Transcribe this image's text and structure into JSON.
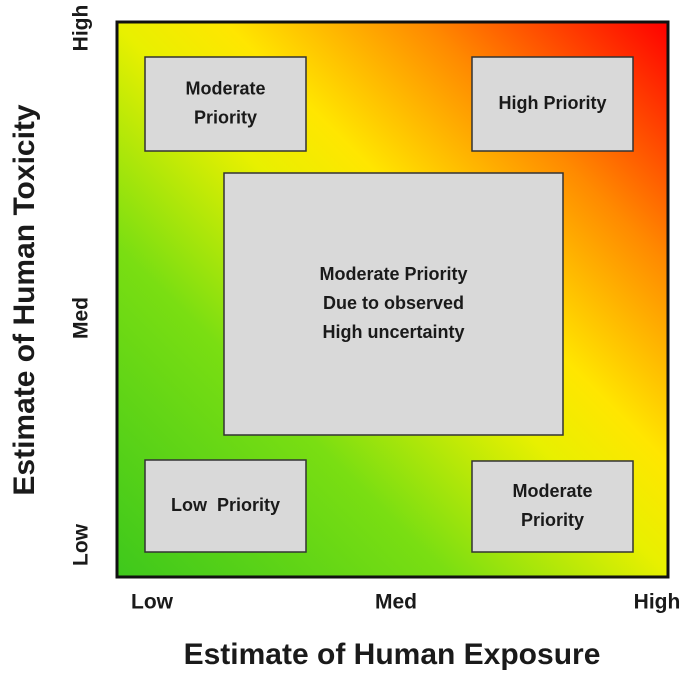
{
  "x_axis": {
    "title": "Estimate of Human Exposure",
    "ticks": [
      "Low",
      "Med",
      "High"
    ]
  },
  "y_axis": {
    "title": "Estimate of Human Toxicity",
    "ticks": [
      "Low",
      "Med",
      "High"
    ]
  },
  "boxes": [
    {
      "lines": [
        "Moderate",
        "Priority"
      ]
    },
    {
      "lines": [
        "High Priority"
      ]
    },
    {
      "lines": [
        "Moderate Priority",
        "Due to observed",
        "High uncertainty"
      ]
    },
    {
      "lines": [
        "Low  Priority"
      ]
    },
    {
      "lines": [
        "Moderate",
        "Priority"
      ]
    }
  ]
}
